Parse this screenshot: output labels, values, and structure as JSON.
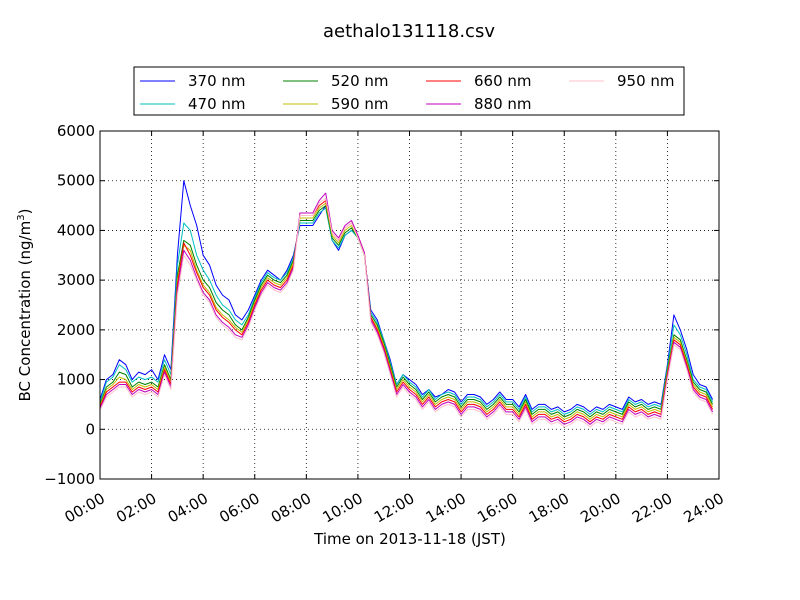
{
  "chart_data": {
    "type": "line",
    "title": "aethalo131118.csv",
    "xlabel": "Time on 2013-11-18 (JST)",
    "ylabel": "BC Concentration (ng/m³)",
    "ylabel_base": "BC Concentration (ng/m",
    "ylabel_sup": "3",
    "ylabel_end": ")",
    "xlim": [
      0,
      24
    ],
    "ylim": [
      -1000,
      6000
    ],
    "x_ticks": [
      0,
      2,
      4,
      6,
      8,
      10,
      12,
      14,
      16,
      18,
      20,
      22,
      24
    ],
    "x_tick_labels": [
      "00:00",
      "02:00",
      "04:00",
      "06:00",
      "08:00",
      "10:00",
      "12:00",
      "14:00",
      "16:00",
      "18:00",
      "20:00",
      "22:00",
      "24:00"
    ],
    "y_ticks": [
      -1000,
      0,
      1000,
      2000,
      3000,
      4000,
      5000,
      6000
    ],
    "y_tick_labels": [
      "−1000",
      "0",
      "1000",
      "2000",
      "3000",
      "4000",
      "5000",
      "6000"
    ],
    "grid": true,
    "legend_position": "top-center, above plot",
    "x": [
      0.0,
      0.25,
      0.5,
      0.75,
      1.0,
      1.25,
      1.5,
      1.75,
      2.0,
      2.25,
      2.5,
      2.75,
      3.0,
      3.25,
      3.5,
      3.75,
      4.0,
      4.25,
      4.5,
      4.75,
      5.0,
      5.25,
      5.5,
      5.75,
      6.0,
      6.25,
      6.5,
      6.75,
      7.0,
      7.25,
      7.5,
      7.75,
      8.0,
      8.25,
      8.5,
      8.75,
      9.0,
      9.25,
      9.5,
      9.75,
      10.0,
      10.25,
      10.5,
      10.75,
      11.0,
      11.25,
      11.5,
      11.75,
      12.0,
      12.25,
      12.5,
      12.75,
      13.0,
      13.25,
      13.5,
      13.75,
      14.0,
      14.25,
      14.5,
      14.75,
      15.0,
      15.25,
      15.5,
      15.75,
      16.0,
      16.25,
      16.5,
      16.75,
      17.0,
      17.25,
      17.5,
      17.75,
      18.0,
      18.25,
      18.5,
      18.75,
      19.0,
      19.25,
      19.5,
      19.75,
      20.0,
      20.25,
      20.5,
      20.75,
      21.0,
      21.25,
      21.5,
      21.75,
      22.0,
      22.25,
      22.5,
      22.75,
      23.0,
      23.25,
      23.5,
      23.75
    ],
    "series": [
      {
        "name": "370 nm",
        "color": "#0000ff",
        "values": [
          600,
          1000,
          1100,
          1400,
          1300,
          1000,
          1150,
          1100,
          1200,
          1000,
          1500,
          1200,
          3500,
          5000,
          4500,
          4100,
          3500,
          3300,
          2900,
          2700,
          2600,
          2300,
          2200,
          2400,
          2700,
          3000,
          3200,
          3100,
          3000,
          3200,
          3500,
          4100,
          4100,
          4100,
          4300,
          4500,
          3800,
          3600,
          3900,
          4000,
          3900,
          3500,
          2400,
          2200,
          1800,
          1400,
          900,
          1100,
          1000,
          900,
          700,
          800,
          650,
          700,
          800,
          750,
          550,
          700,
          700,
          650,
          500,
          600,
          750,
          600,
          600,
          450,
          700,
          400,
          500,
          500,
          400,
          450,
          350,
          400,
          500,
          450,
          350,
          450,
          400,
          500,
          450,
          400,
          650,
          550,
          600,
          500,
          550,
          500,
          1300,
          2300,
          2000,
          1600,
          1100,
          900,
          850,
          600
        ]
      },
      {
        "name": "470 nm",
        "color": "#00bfbf",
        "values": [
          550,
          950,
          1050,
          1300,
          1200,
          950,
          1050,
          1000,
          1050,
          950,
          1400,
          1100,
          3300,
          4150,
          4000,
          3500,
          3200,
          3000,
          2700,
          2500,
          2400,
          2200,
          2100,
          2300,
          2650,
          2950,
          3150,
          3050,
          3000,
          3150,
          3450,
          4150,
          4150,
          4150,
          4350,
          4450,
          3800,
          3650,
          3900,
          4000,
          3850,
          3500,
          2350,
          2150,
          1800,
          1350,
          900,
          1100,
          950,
          850,
          650,
          800,
          600,
          700,
          750,
          700,
          500,
          650,
          650,
          600,
          450,
          550,
          700,
          550,
          550,
          400,
          650,
          350,
          450,
          450,
          350,
          400,
          300,
          350,
          450,
          400,
          300,
          400,
          350,
          450,
          400,
          350,
          600,
          500,
          550,
          450,
          500,
          450,
          1250,
          2100,
          1900,
          1500,
          1000,
          850,
          800,
          550
        ]
      },
      {
        "name": "520 nm",
        "color": "#008000",
        "values": [
          500,
          850,
          950,
          1150,
          1100,
          850,
          950,
          900,
          950,
          850,
          1300,
          1000,
          3100,
          3800,
          3700,
          3300,
          3000,
          2850,
          2550,
          2400,
          2300,
          2100,
          2000,
          2250,
          2600,
          2900,
          3100,
          3000,
          2950,
          3100,
          3400,
          4200,
          4200,
          4200,
          4400,
          4500,
          3850,
          3700,
          3950,
          4050,
          3850,
          3500,
          2300,
          2100,
          1750,
          1300,
          850,
          1050,
          900,
          800,
          600,
          750,
          550,
          650,
          700,
          650,
          450,
          600,
          600,
          550,
          400,
          500,
          650,
          500,
          500,
          350,
          600,
          300,
          400,
          400,
          300,
          350,
          250,
          300,
          400,
          350,
          250,
          350,
          300,
          400,
          350,
          300,
          550,
          450,
          500,
          400,
          450,
          400,
          1200,
          1900,
          1800,
          1400,
          950,
          800,
          750,
          500
        ]
      },
      {
        "name": "590 nm",
        "color": "#bfbf00",
        "values": [
          480,
          800,
          900,
          1050,
          1000,
          800,
          900,
          850,
          900,
          800,
          1250,
          950,
          3000,
          3700,
          3600,
          3200,
          2900,
          2750,
          2450,
          2300,
          2200,
          2050,
          1950,
          2200,
          2550,
          2850,
          3050,
          2950,
          2900,
          3050,
          3350,
          4250,
          4250,
          4250,
          4450,
          4550,
          3900,
          3750,
          4000,
          4100,
          3850,
          3500,
          2250,
          2050,
          1700,
          1250,
          800,
          1000,
          850,
          750,
          550,
          700,
          500,
          600,
          650,
          600,
          400,
          550,
          550,
          500,
          350,
          450,
          600,
          450,
          450,
          300,
          550,
          250,
          350,
          350,
          250,
          300,
          200,
          250,
          350,
          300,
          200,
          300,
          250,
          350,
          300,
          250,
          500,
          400,
          450,
          350,
          400,
          350,
          1150,
          1850,
          1750,
          1350,
          900,
          750,
          700,
          450
        ]
      },
      {
        "name": "660 nm",
        "color": "#ff0000",
        "values": [
          450,
          750,
          850,
          950,
          950,
          750,
          850,
          800,
          850,
          750,
          1200,
          900,
          2900,
          3750,
          3500,
          3150,
          2850,
          2700,
          2400,
          2250,
          2150,
          2000,
          1900,
          2150,
          2500,
          2800,
          3000,
          2900,
          2850,
          3000,
          3300,
          4300,
          4300,
          4300,
          4500,
          4600,
          3950,
          3800,
          4050,
          4150,
          3900,
          3550,
          2250,
          2000,
          1650,
          1200,
          750,
          950,
          800,
          700,
          500,
          650,
          450,
          550,
          600,
          550,
          350,
          500,
          500,
          450,
          300,
          400,
          550,
          400,
          400,
          250,
          500,
          200,
          300,
          300,
          200,
          250,
          150,
          200,
          300,
          250,
          150,
          250,
          200,
          300,
          250,
          200,
          450,
          350,
          400,
          300,
          350,
          300,
          1100,
          1800,
          1700,
          1300,
          850,
          700,
          650,
          400
        ]
      },
      {
        "name": "880 nm",
        "color": "#bf00bf",
        "values": [
          420,
          700,
          800,
          900,
          900,
          700,
          800,
          750,
          800,
          700,
          1150,
          850,
          2800,
          3600,
          3400,
          3050,
          2750,
          2600,
          2300,
          2150,
          2050,
          1900,
          1850,
          2100,
          2450,
          2750,
          2950,
          2850,
          2800,
          2950,
          3250,
          4350,
          4350,
          4350,
          4600,
          4750,
          4000,
          3850,
          4100,
          4200,
          3900,
          3550,
          2200,
          1950,
          1600,
          1150,
          700,
          900,
          750,
          650,
          450,
          600,
          400,
          500,
          550,
          500,
          300,
          450,
          450,
          400,
          250,
          350,
          500,
          350,
          350,
          200,
          450,
          150,
          250,
          250,
          150,
          200,
          100,
          150,
          250,
          200,
          100,
          200,
          150,
          250,
          200,
          150,
          400,
          300,
          350,
          250,
          300,
          250,
          1050,
          1750,
          1650,
          1250,
          800,
          650,
          600,
          350
        ]
      },
      {
        "name": "950 nm",
        "color": "#ffc0cb",
        "values": [
          380,
          650,
          750,
          850,
          850,
          650,
          750,
          700,
          750,
          650,
          1100,
          800,
          2700,
          3500,
          3300,
          3000,
          2700,
          2550,
          2250,
          2100,
          2000,
          1850,
          1800,
          2050,
          2400,
          2700,
          2900,
          2800,
          2750,
          2900,
          3200,
          4300,
          4300,
          4300,
          4550,
          4650,
          3950,
          3800,
          4050,
          4150,
          3850,
          3500,
          2150,
          1900,
          1550,
          1100,
          650,
          850,
          700,
          600,
          400,
          550,
          350,
          450,
          500,
          450,
          250,
          400,
          400,
          350,
          200,
          300,
          450,
          300,
          300,
          150,
          400,
          100,
          200,
          200,
          100,
          150,
          50,
          100,
          200,
          150,
          50,
          150,
          100,
          200,
          150,
          100,
          350,
          250,
          300,
          200,
          250,
          200,
          1000,
          1700,
          1600,
          1200,
          750,
          600,
          550,
          300
        ]
      }
    ]
  }
}
